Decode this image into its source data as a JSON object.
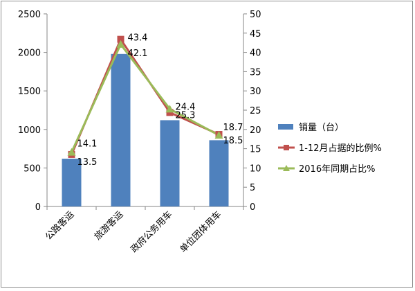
{
  "chart_data": {
    "type": "bar",
    "categories": [
      "公路客运",
      "旅游客运",
      "政府公务用车",
      "单位团体用车"
    ],
    "series": [
      {
        "name": "销量（台）",
        "type": "bar",
        "axis": "left",
        "color": "#4f81bd",
        "values": [
          620,
          1980,
          1120,
          860
        ]
      },
      {
        "name": "1-12月占据的比例%",
        "type": "line",
        "axis": "right",
        "color": "#c0504d",
        "marker": "square",
        "values": [
          13.5,
          43.4,
          24.4,
          18.7
        ]
      },
      {
        "name": "2016年同期占比%",
        "type": "line",
        "axis": "right",
        "color": "#9bbb59",
        "marker": "triangle",
        "values": [
          14.1,
          42.1,
          25.3,
          18.5
        ]
      }
    ],
    "y_left": {
      "min": 0,
      "max": 2500,
      "step": 500,
      "ticks": [
        "0",
        "500",
        "1000",
        "1500",
        "2000",
        "2500"
      ]
    },
    "y_right": {
      "min": 0,
      "max": 50,
      "step": 5,
      "ticks": [
        "0",
        "5",
        "10",
        "15",
        "20",
        "25",
        "30",
        "35",
        "40",
        "45",
        "50"
      ]
    },
    "data_labels": [
      {
        "series": 1,
        "point": 0,
        "text": "13.5"
      },
      {
        "series": 1,
        "point": 1,
        "text": "43.4"
      },
      {
        "series": 1,
        "point": 2,
        "text": "24.4"
      },
      {
        "series": 1,
        "point": 3,
        "text": "18.7"
      },
      {
        "series": 2,
        "point": 0,
        "text": "14.1"
      },
      {
        "series": 2,
        "point": 1,
        "text": "42.1"
      },
      {
        "series": 2,
        "point": 2,
        "text": "25.3"
      },
      {
        "series": 2,
        "point": 3,
        "text": "18.5"
      }
    ],
    "grid": false,
    "legend_position": "right",
    "title": "",
    "xlabel": "",
    "ylabel": ""
  }
}
